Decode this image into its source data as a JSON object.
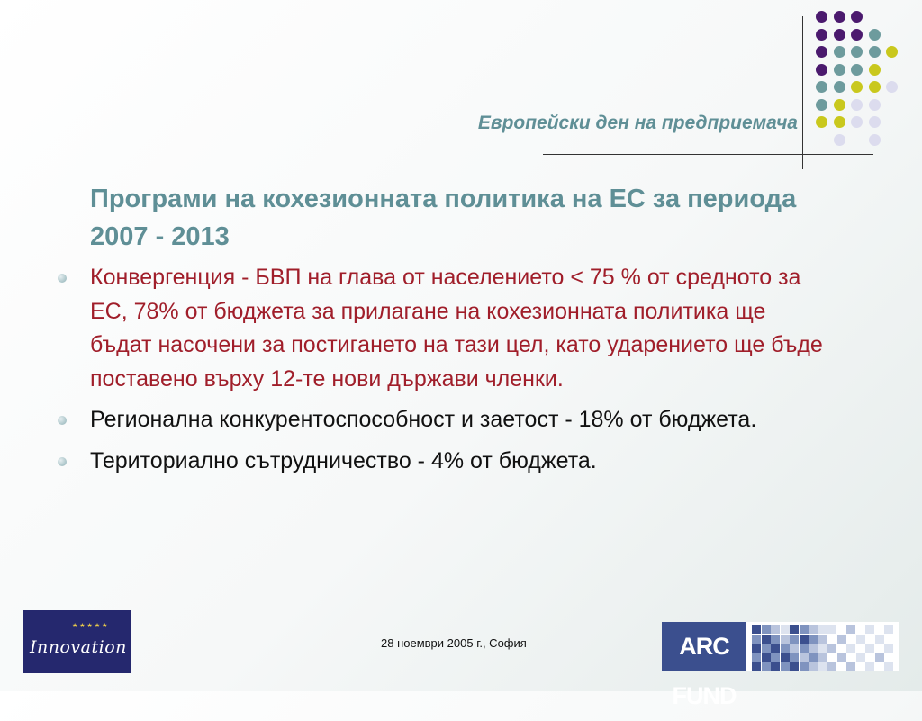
{
  "header": {
    "title": "Европейски ден на предприемача",
    "dot_colors": {
      "purple": "#4b1a6e",
      "teal": "#6d9b9d",
      "lime": "#c9c81d",
      "lavender": "#dcdcee"
    }
  },
  "content": {
    "heading": "Програми на кохезионната политика на ЕС за периода 2007 - 2013",
    "bullets": [
      {
        "text": "Конвергенция - БВП на глава от населението < 75 % от средното за ЕС, 78% от бюджета за прилагане на кохезионната политика ще бъдат насочени за постигането на тази цел, като ударението ще бъде поставено върху 12-те нови държави членки.",
        "color": "#a01e2a"
      },
      {
        "text": "Регионална конкурентоспособност и заетост - 18% от бюджета.",
        "color": "#111111"
      },
      {
        "text": "Териториално сътрудничество - 4% от бюджета.",
        "color": "#111111"
      }
    ]
  },
  "footer": {
    "date": "28 ноември 2005 г., София",
    "logo_left_text": "Innovation",
    "logo_right_text": "ARC FUND"
  }
}
